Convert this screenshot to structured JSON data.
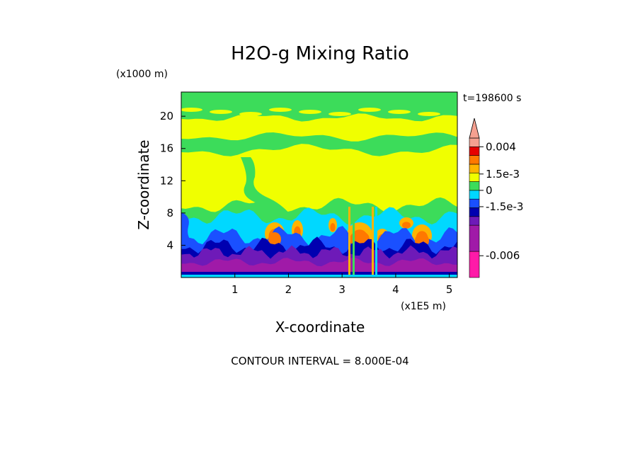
{
  "chart_data": {
    "type": "heatmap",
    "title": "H2O-g Mixing Ratio",
    "xlabel": "X-coordinate",
    "ylabel": "Z-coordinate",
    "x_unit": "(x1E5 m)",
    "y_unit": "(x1000 m)",
    "time_label": "t=198600 s",
    "footer": "CONTOUR INTERVAL = 8.000E-04",
    "xlim": [
      0,
      5.15
    ],
    "ylim": [
      0,
      23
    ],
    "x_ticks": [
      "1",
      "2",
      "3",
      "4",
      "5"
    ],
    "x_tick_values": [
      1,
      2,
      3,
      4,
      5
    ],
    "y_ticks": [
      "4",
      "8",
      "12",
      "16",
      "20"
    ],
    "y_tick_values": [
      4,
      8,
      12,
      16,
      20
    ],
    "colorbar": {
      "labels": [
        "0.004",
        "1.5e-3",
        "0",
        "-1.5e-3",
        "-0.006"
      ],
      "label_values": [
        0.004,
        0.0015,
        0,
        -0.0015,
        -0.006
      ],
      "levels": [
        {
          "color": "#ff1aa8",
          "from": -0.008,
          "to": -0.0056
        },
        {
          "color": "#a01aa8",
          "from": -0.0056,
          "to": -0.0032
        },
        {
          "color": "#6e1ab8",
          "from": -0.0032,
          "to": -0.0024
        },
        {
          "color": "#0000b0",
          "from": -0.0024,
          "to": -0.0016
        },
        {
          "color": "#1a50ff",
          "from": -0.0016,
          "to": -0.0008
        },
        {
          "color": "#00d8ff",
          "from": -0.0008,
          "to": 0.0
        },
        {
          "color": "#3cdc5a",
          "from": 0.0,
          "to": 0.0008
        },
        {
          "color": "#f0ff00",
          "from": 0.0008,
          "to": 0.0016
        },
        {
          "color": "#ffb400",
          "from": 0.0016,
          "to": 0.0024
        },
        {
          "color": "#ff7800",
          "from": 0.0024,
          "to": 0.0032
        },
        {
          "color": "#e60000",
          "from": 0.0032,
          "to": 0.004
        },
        {
          "color": "#f5a090",
          "from": 0.004,
          "to": 0.0048
        }
      ]
    },
    "grid": false,
    "colors": {
      "green": "#3cdc5a",
      "yellow": "#f0ff00",
      "cyan": "#00d8ff",
      "blue": "#1a50ff",
      "navy": "#0000b0",
      "violet": "#6e1ab8",
      "purple": "#a01aa8",
      "magenta": "#ff1aa8",
      "orange": "#ff7800",
      "light_orange": "#ffb400",
      "red": "#e60000"
    }
  }
}
